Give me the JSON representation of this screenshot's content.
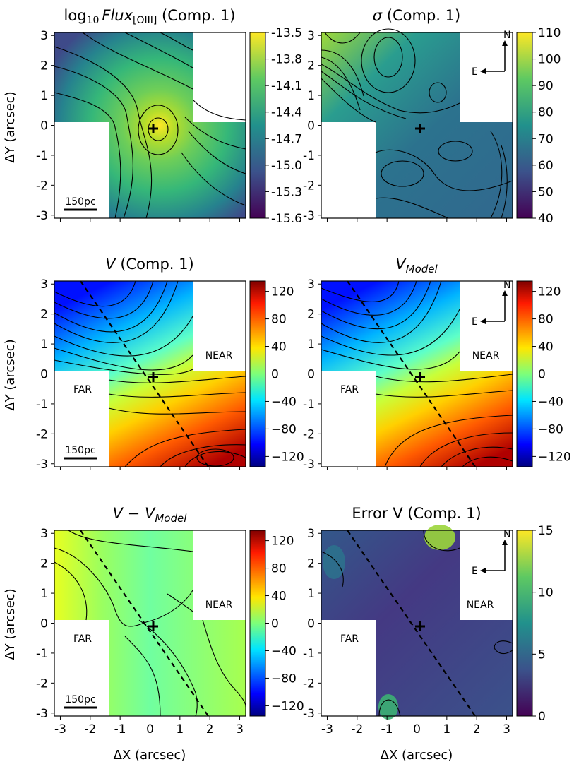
{
  "figure": {
    "xlabel": "ΔX (arcsec)",
    "ylabel": "ΔY (arcsec)",
    "xticks": [
      "-3",
      "-2",
      "-1",
      "0",
      "1",
      "2",
      "3"
    ],
    "yticks": [
      "3",
      "2",
      "1",
      "0",
      "-1",
      "-2",
      "-3"
    ]
  },
  "chart_data": [
    {
      "type": "heatmap",
      "title": "log10 Flux[OIII] (Comp. 1)",
      "title_parts": {
        "log": "log",
        "sub10": "10",
        "flux": "Flux",
        "sub_ion": "[OIII]",
        "rest": " (Comp. 1)"
      },
      "colormap": "viridis",
      "colorbar_ticks": [
        "-13.5",
        "-13.8",
        "-14.1",
        "-14.4",
        "-14.7",
        "-15.0",
        "-15.3",
        "-15.6"
      ],
      "clim": [
        -15.6,
        -13.5
      ],
      "xlim": [
        -3.2,
        3.2
      ],
      "ylim": [
        -3.1,
        3.1
      ],
      "scale_label": "150pc",
      "markers": [
        {
          "label": "nucleus",
          "x": 0.1,
          "y": -0.1
        }
      ]
    },
    {
      "type": "heatmap",
      "title": "σ (Comp. 1)",
      "title_parts": {
        "sym": "σ",
        "rest": " (Comp. 1)"
      },
      "colormap": "viridis",
      "colorbar_ticks": [
        "110",
        "100",
        "90",
        "80",
        "70",
        "60",
        "50",
        "40"
      ],
      "clim": [
        40,
        110
      ],
      "xlim": [
        -3.2,
        3.2
      ],
      "ylim": [
        -3.1,
        3.1
      ],
      "compass": {
        "north": "N",
        "east": "E"
      }
    },
    {
      "type": "heatmap",
      "title": "V (Comp. 1)",
      "title_parts": {
        "sym": "V",
        "rest": " (Comp. 1)"
      },
      "colormap": "jet",
      "colorbar_ticks": [
        "120",
        "80",
        "40",
        "0",
        "−40",
        "−80",
        "−120"
      ],
      "clim": [
        -135,
        135
      ],
      "xlim": [
        -3.2,
        3.2
      ],
      "ylim": [
        -3.1,
        3.1
      ],
      "annotations": {
        "near": "NEAR",
        "far": "FAR"
      },
      "scale_label": "150pc",
      "pa_line": {
        "start": [
          -1.9,
          3.1
        ],
        "end": [
          1.9,
          -3.1
        ]
      }
    },
    {
      "type": "heatmap",
      "title": "V_Model",
      "title_parts": {
        "sym": "V",
        "sub": "Model"
      },
      "colormap": "jet",
      "colorbar_ticks": [
        "120",
        "80",
        "40",
        "0",
        "−40",
        "−80",
        "−120"
      ],
      "clim": [
        -135,
        135
      ],
      "xlim": [
        -3.2,
        3.2
      ],
      "ylim": [
        -3.1,
        3.1
      ],
      "annotations": {
        "near": "NEAR",
        "far": "FAR"
      },
      "compass": {
        "north": "N",
        "east": "E"
      },
      "pa_line": {
        "start": [
          -1.9,
          3.1
        ],
        "end": [
          1.9,
          -3.1
        ]
      }
    },
    {
      "type": "heatmap",
      "title": "V − V_Model",
      "title_parts": {
        "sym": "V",
        "minus": " − ",
        "sym2": "V",
        "sub": "Model"
      },
      "colormap": "jet",
      "colorbar_ticks": [
        "120",
        "80",
        "40",
        "0",
        "−40",
        "−80",
        "−120"
      ],
      "clim": [
        -135,
        135
      ],
      "xlim": [
        -3.2,
        3.2
      ],
      "ylim": [
        -3.1,
        3.1
      ],
      "annotations": {
        "near": "NEAR",
        "far": "FAR"
      },
      "scale_label": "150pc",
      "pa_line": {
        "start": [
          -1.9,
          3.1
        ],
        "end": [
          1.9,
          -3.1
        ]
      }
    },
    {
      "type": "heatmap",
      "title": "Error V (Comp. 1)",
      "title_parts": {
        "rest": "Error V (Comp. 1)"
      },
      "colormap": "viridis",
      "colorbar_ticks": [
        "15",
        "10",
        "5",
        "0"
      ],
      "clim": [
        0,
        15
      ],
      "xlim": [
        -3.2,
        3.2
      ],
      "ylim": [
        -3.1,
        3.1
      ],
      "annotations": {
        "near": "NEAR",
        "far": "FAR"
      },
      "compass": {
        "north": "N",
        "east": "E"
      },
      "pa_line": {
        "start": [
          -1.9,
          3.1
        ],
        "end": [
          1.9,
          -3.1
        ]
      }
    }
  ]
}
